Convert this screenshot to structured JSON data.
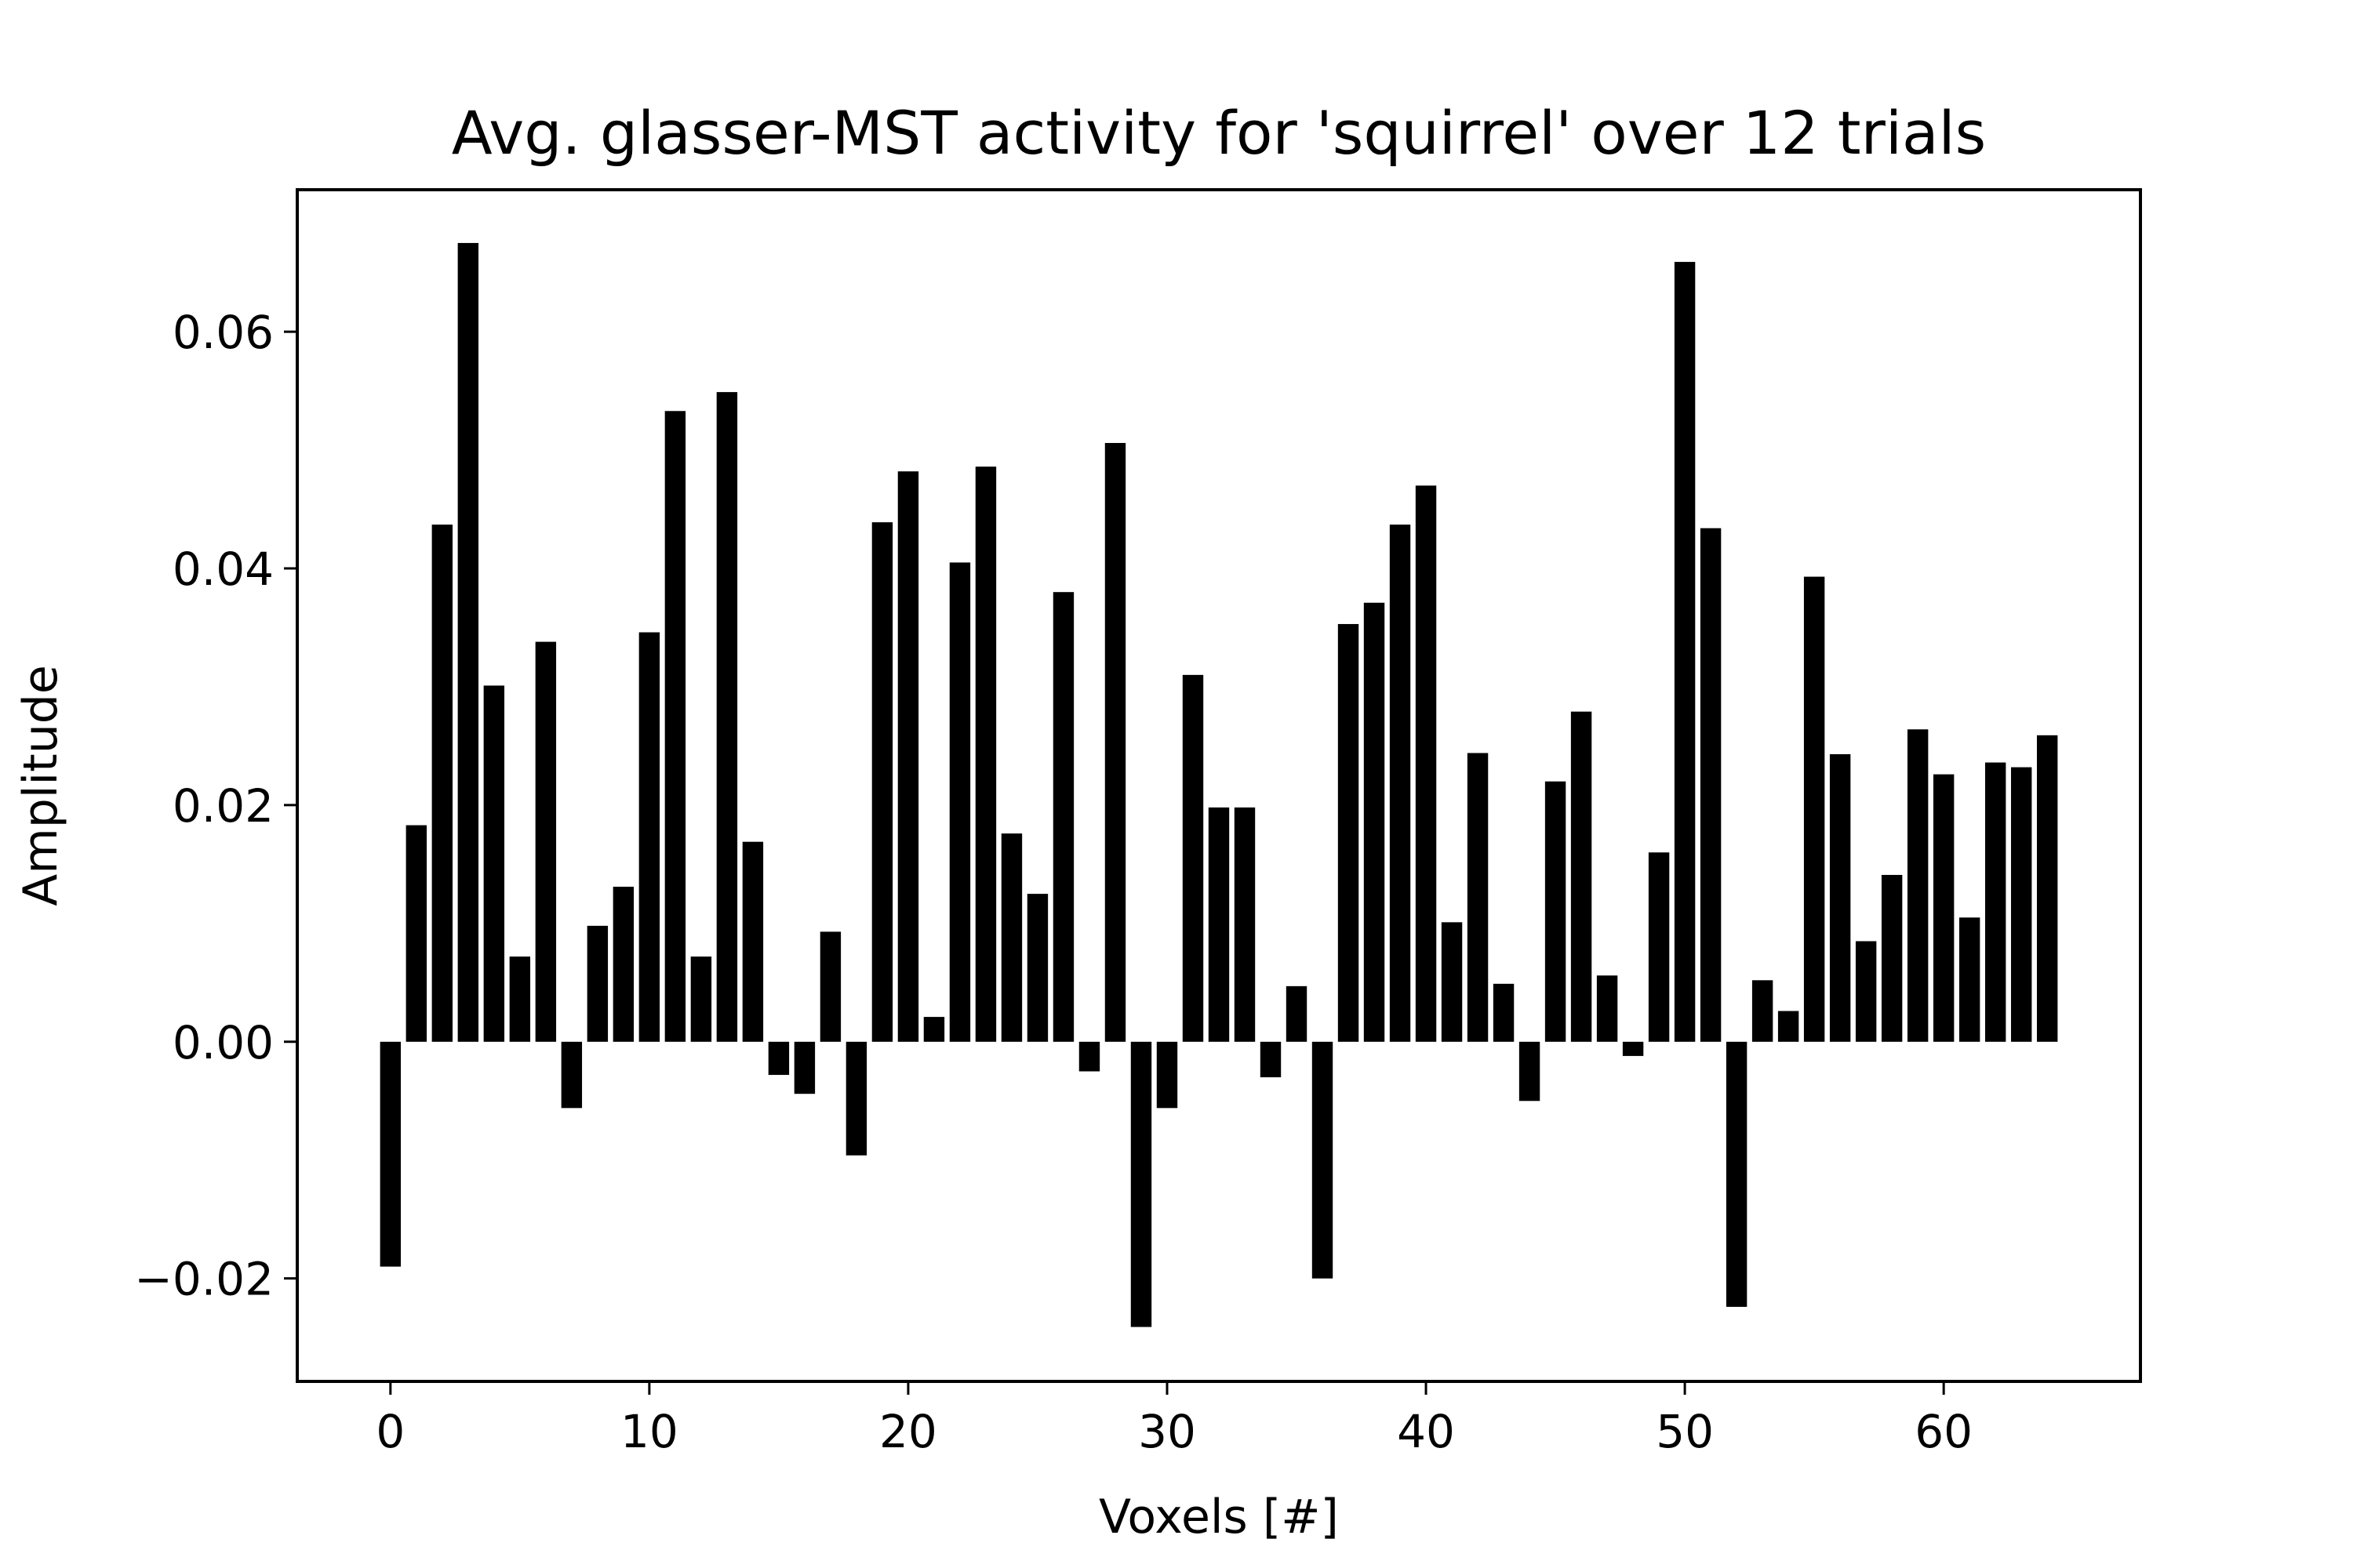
{
  "chart_data": {
    "type": "bar",
    "title": "Avg. glasser-MST activity for 'squirrel' over 12 trials",
    "xlabel": "Voxels [#]",
    "ylabel": "Amplitude",
    "x": [
      0,
      1,
      2,
      3,
      4,
      5,
      6,
      7,
      8,
      9,
      10,
      11,
      12,
      13,
      14,
      15,
      16,
      17,
      18,
      19,
      20,
      21,
      22,
      23,
      24,
      25,
      26,
      27,
      28,
      29,
      30,
      31,
      32,
      33,
      34,
      35,
      36,
      37,
      38,
      39,
      40,
      41,
      42,
      43,
      44,
      45,
      46,
      47,
      48,
      49,
      50,
      51,
      52,
      53,
      54,
      55,
      56,
      57,
      58,
      59,
      60,
      61,
      62,
      63,
      64
    ],
    "values": [
      -0.019,
      0.0183,
      0.0437,
      0.0675,
      0.0301,
      0.0072,
      0.0338,
      -0.0056,
      0.0098,
      0.0131,
      0.0346,
      0.0533,
      0.0072,
      0.0549,
      0.0169,
      -0.0028,
      -0.0044,
      0.0093,
      -0.0096,
      0.0439,
      0.0482,
      0.0021,
      0.0405,
      0.0486,
      0.0176,
      0.0125,
      0.038,
      -0.0025,
      0.0506,
      -0.0241,
      -0.0056,
      0.031,
      0.0198,
      0.0198,
      -0.003,
      0.0047,
      -0.02,
      0.0353,
      0.0371,
      0.0437,
      0.047,
      0.0101,
      0.0244,
      0.0049,
      -0.005,
      0.022,
      0.0279,
      0.0056,
      -0.0012,
      0.016,
      0.0659,
      0.0434,
      -0.0224,
      0.0052,
      0.0026,
      0.0393,
      0.0243,
      0.0085,
      0.0141,
      0.0264,
      0.0226,
      0.0105,
      0.0236,
      0.0232,
      0.0259
    ],
    "xlim": [
      -3.6,
      67.6
    ],
    "ylim": [
      -0.0287,
      0.072
    ],
    "xticks": [
      0,
      10,
      20,
      30,
      40,
      50,
      60
    ],
    "xtick_labels": [
      "0",
      "10",
      "20",
      "30",
      "40",
      "50",
      "60"
    ],
    "yticks": [
      -0.02,
      0.0,
      0.02,
      0.04,
      0.06
    ],
    "ytick_labels": [
      "−0.02",
      "0.00",
      "0.02",
      "0.04",
      "0.06"
    ],
    "bar_width": 0.8,
    "grid": false,
    "bar_color": "#000000"
  }
}
